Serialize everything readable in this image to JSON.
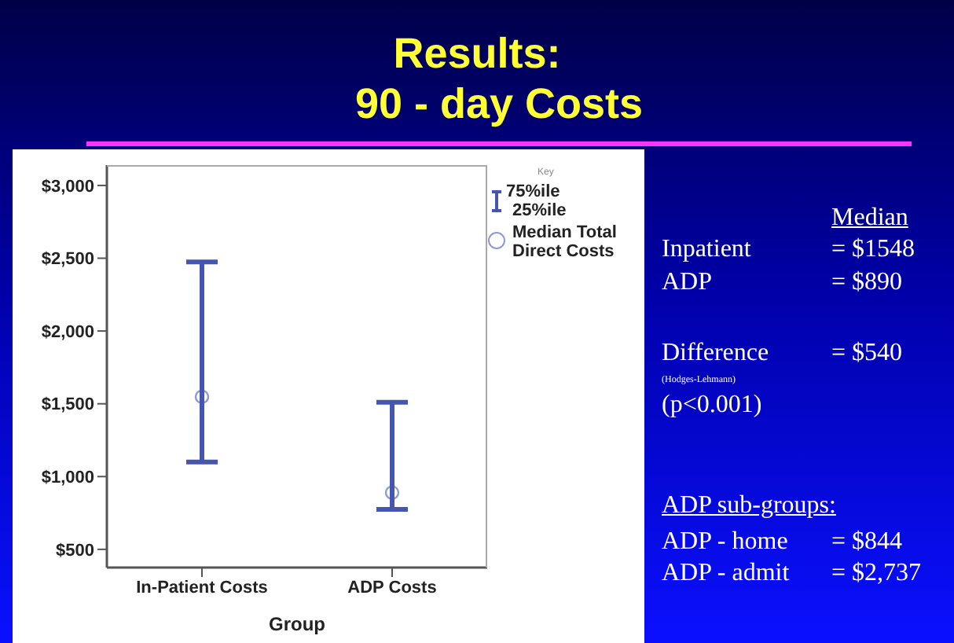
{
  "chart_data": {
    "type": "scatter",
    "title": "Results:",
    "subtitle": "90 - day Costs",
    "xlabel": "Group",
    "legend_title": "Key",
    "legend": "right",
    "marker": "circle",
    "categories": [
      "In-Patient Costs",
      "ADP Costs"
    ],
    "series": [
      {
        "name": "Median Total Direct Costs",
        "color": "#4556b0",
        "values": [
          1548,
          890
        ],
        "errors": [
          [
            1100,
            2475
          ],
          [
            775,
            1510
          ]
        ]
      }
    ],
    "ylim": [
      375,
      3140
    ],
    "yticks": [
      {
        "value": 500,
        "label": "$500"
      },
      {
        "value": 1000,
        "label": "$1,000"
      },
      {
        "value": 1500,
        "label": "$1,500"
      },
      {
        "value": 2000,
        "label": "$2,000"
      },
      {
        "value": 2500,
        "label": "$2,500"
      },
      {
        "value": 3000,
        "label": "$3,000"
      }
    ],
    "annotations": [
      "75%ile",
      "25%ile",
      "Median",
      "Inpatient",
      "= $1548",
      "ADP",
      "= $890",
      "Difference",
      "= $540",
      "(Hodges-Lehmann)",
      "(p<0.001)",
      "ADP sub-groups:",
      "ADP - home",
      "= $844",
      "ADP - admit",
      "= $2,737"
    ]
  }
}
